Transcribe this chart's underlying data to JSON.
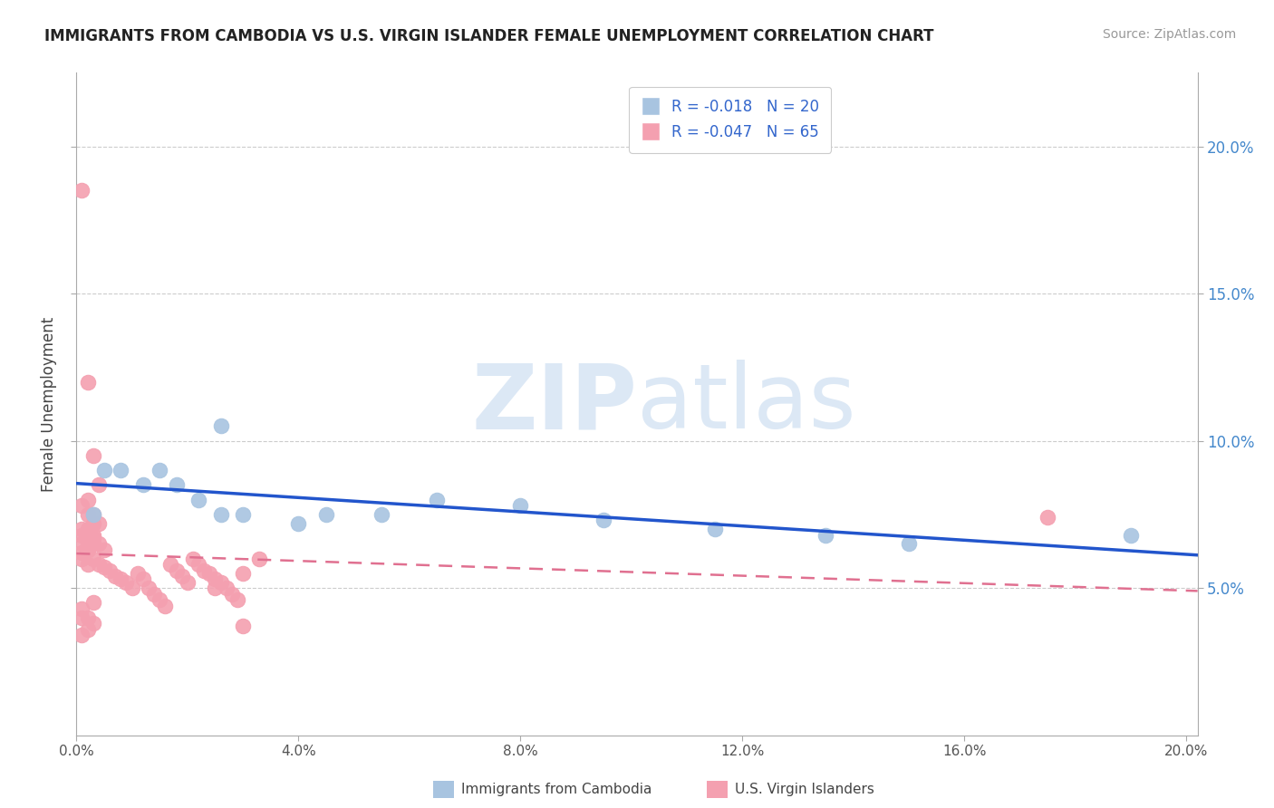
{
  "title": "IMMIGRANTS FROM CAMBODIA VS U.S. VIRGIN ISLANDER FEMALE UNEMPLOYMENT CORRELATION CHART",
  "source": "Source: ZipAtlas.com",
  "ylabel": "Female Unemployment",
  "xlim": [
    0.0,
    0.202
  ],
  "ylim": [
    0.0,
    0.225
  ],
  "yticks": [
    0.05,
    0.1,
    0.15,
    0.2
  ],
  "xticks": [
    0.0,
    0.04,
    0.08,
    0.12,
    0.16,
    0.2
  ],
  "legend_r_blue": "R = -0.018",
  "legend_n_blue": "N = 20",
  "legend_r_pink": "R = -0.047",
  "legend_n_pink": "N = 65",
  "blue_color": "#a8c4e0",
  "pink_color": "#f4a0b0",
  "trendline_blue_color": "#2255cc",
  "trendline_pink_color": "#e07090",
  "watermark_zip": "ZIP",
  "watermark_atlas": "atlas",
  "watermark_color": "#dce8f5",
  "blue_legend_color": "#a8c4e0",
  "pink_legend_color": "#f4a0b0",
  "blue_x": [
    0.003,
    0.005,
    0.008,
    0.012,
    0.015,
    0.018,
    0.022,
    0.026,
    0.03,
    0.04,
    0.055,
    0.065,
    0.08,
    0.095,
    0.115,
    0.135,
    0.15,
    0.19,
    0.026,
    0.045
  ],
  "blue_y": [
    0.075,
    0.09,
    0.09,
    0.085,
    0.09,
    0.085,
    0.08,
    0.075,
    0.075,
    0.072,
    0.075,
    0.08,
    0.078,
    0.073,
    0.07,
    0.068,
    0.065,
    0.068,
    0.105,
    0.075
  ],
  "pink_x": [
    0.001,
    0.002,
    0.003,
    0.004,
    0.001,
    0.002,
    0.003,
    0.002,
    0.001,
    0.003,
    0.004,
    0.005,
    0.002,
    0.003,
    0.004,
    0.003,
    0.002,
    0.001,
    0.003,
    0.004,
    0.005,
    0.006,
    0.007,
    0.008,
    0.009,
    0.01,
    0.011,
    0.012,
    0.013,
    0.014,
    0.015,
    0.016,
    0.017,
    0.018,
    0.019,
    0.02,
    0.021,
    0.022,
    0.023,
    0.024,
    0.025,
    0.026,
    0.027,
    0.028,
    0.029,
    0.03,
    0.001,
    0.002,
    0.003,
    0.002,
    0.001,
    0.002,
    0.003,
    0.001,
    0.002,
    0.003,
    0.002,
    0.001,
    0.033,
    0.025,
    0.001,
    0.002,
    0.001,
    0.175,
    0.03
  ],
  "pink_y": [
    0.185,
    0.12,
    0.095,
    0.085,
    0.078,
    0.075,
    0.072,
    0.07,
    0.068,
    0.067,
    0.065,
    0.063,
    0.08,
    0.075,
    0.072,
    0.068,
    0.065,
    0.062,
    0.06,
    0.058,
    0.057,
    0.056,
    0.054,
    0.053,
    0.052,
    0.05,
    0.055,
    0.053,
    0.05,
    0.048,
    0.046,
    0.044,
    0.058,
    0.056,
    0.054,
    0.052,
    0.06,
    0.058,
    0.056,
    0.055,
    0.053,
    0.052,
    0.05,
    0.048,
    0.046,
    0.055,
    0.07,
    0.068,
    0.065,
    0.063,
    0.06,
    0.058,
    0.045,
    0.043,
    0.04,
    0.038,
    0.036,
    0.034,
    0.06,
    0.05,
    0.065,
    0.063,
    0.04,
    0.074,
    0.037
  ]
}
